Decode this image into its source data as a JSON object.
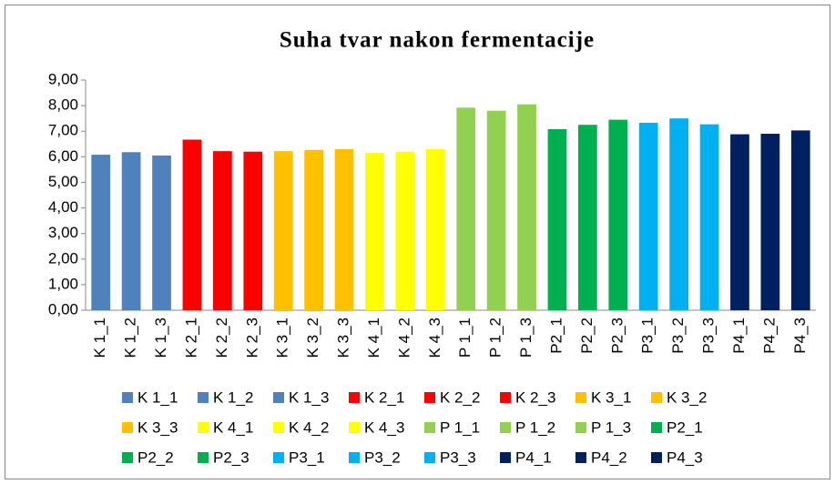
{
  "chart_data": {
    "type": "bar",
    "title": "Suha tvar nakon fermentacije",
    "categories": [
      "K 1_1",
      "K 1_2",
      "K 1_3",
      "K 2_1",
      "K 2_2",
      "K 2_3",
      "K 3_1",
      "K 3_2",
      "K 3_3",
      "K 4_1",
      "K 4_2",
      "K 4_3",
      "P 1_1",
      "P 1_2",
      "P 1_3",
      "P2_1",
      "P2_2",
      "P2_3",
      "P3_1",
      "P3_2",
      "P3_3",
      "P4_1",
      "P4_2",
      "P4_3"
    ],
    "values": [
      6.08,
      6.18,
      6.05,
      6.67,
      6.22,
      6.2,
      6.22,
      6.27,
      6.3,
      6.15,
      6.2,
      6.3,
      7.92,
      7.8,
      8.05,
      7.08,
      7.25,
      7.45,
      7.33,
      7.5,
      7.27,
      6.88,
      6.9,
      7.03
    ],
    "colors": [
      "#4f81bd",
      "#4f81bd",
      "#4f81bd",
      "#ff0000",
      "#ff0000",
      "#ff0000",
      "#ffc000",
      "#ffc000",
      "#ffc000",
      "#ffff00",
      "#ffff00",
      "#ffff00",
      "#92d050",
      "#92d050",
      "#92d050",
      "#00b050",
      "#00b050",
      "#00b050",
      "#00b0f0",
      "#00b0f0",
      "#00b0f0",
      "#002060",
      "#002060",
      "#002060"
    ],
    "ylim": [
      0,
      9
    ],
    "yticks": [
      {
        "value": 0,
        "label": "0,00"
      },
      {
        "value": 1,
        "label": "1,00"
      },
      {
        "value": 2,
        "label": "2,00"
      },
      {
        "value": 3,
        "label": "3,00"
      },
      {
        "value": 4,
        "label": "4,00"
      },
      {
        "value": 5,
        "label": "5,00"
      },
      {
        "value": 6,
        "label": "6,00"
      },
      {
        "value": 7,
        "label": "7,00"
      },
      {
        "value": 8,
        "label": "8,00"
      },
      {
        "value": 9,
        "label": "9,00"
      }
    ],
    "legend": "bottom"
  }
}
